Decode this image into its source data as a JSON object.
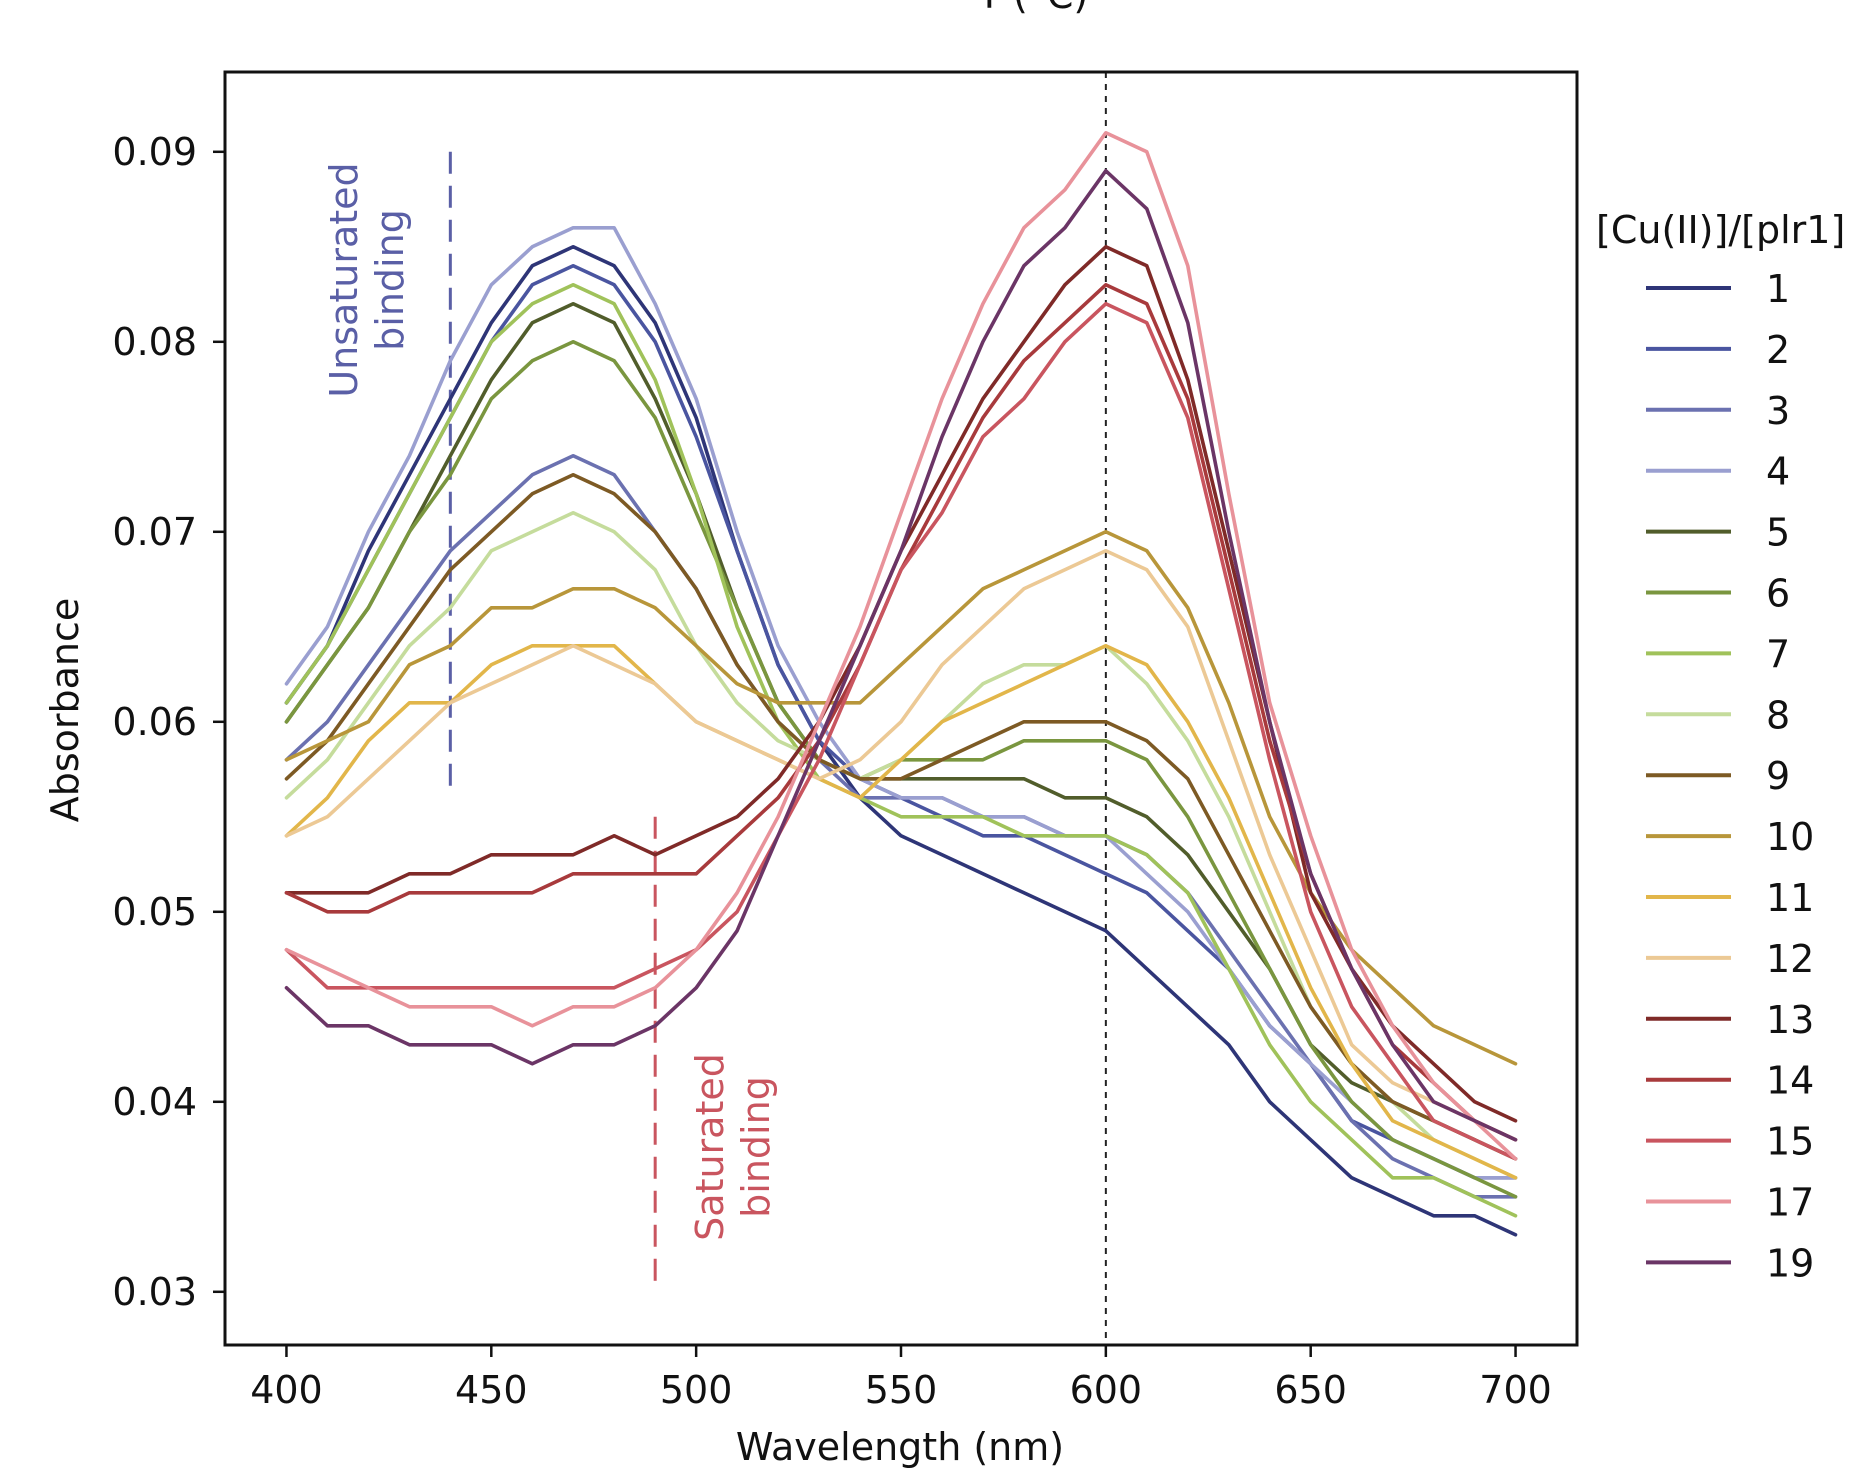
{
  "chart_data": {
    "type": "line",
    "title": "T (°C)",
    "xlabel": "Wavelength (nm)",
    "ylabel": "Absorbance",
    "xlim": [
      385,
      715
    ],
    "ylim": [
      0.0272,
      0.0942
    ],
    "xticks": [
      400,
      450,
      500,
      550,
      600,
      650,
      700
    ],
    "xtick_labels": [
      "400",
      "450",
      "500",
      "550",
      "600",
      "650",
      "700"
    ],
    "yticks": [
      0.03,
      0.04,
      0.05,
      0.06,
      0.07,
      0.08,
      0.09
    ],
    "ytick_labels": [
      "0.03",
      "0.04",
      "0.05",
      "0.06",
      "0.07",
      "0.08",
      "0.09"
    ],
    "grid": false,
    "x": [
      400,
      410,
      420,
      430,
      440,
      450,
      460,
      470,
      480,
      490,
      500,
      510,
      520,
      530,
      540,
      550,
      560,
      570,
      580,
      590,
      600,
      610,
      620,
      630,
      640,
      650,
      660,
      670,
      680,
      690,
      700
    ],
    "legend": {
      "title": "[Cu(II)]/[plr1]",
      "placement": "outside-right"
    },
    "series": [
      {
        "name": "1",
        "color": "#2e3577",
        "values": [
          0.061,
          0.064,
          0.069,
          0.073,
          0.077,
          0.081,
          0.084,
          0.085,
          0.084,
          0.081,
          0.076,
          0.069,
          0.063,
          0.059,
          0.056,
          0.054,
          0.053,
          0.052,
          0.051,
          0.05,
          0.049,
          0.047,
          0.045,
          0.043,
          0.04,
          0.038,
          0.036,
          0.035,
          0.034,
          0.034,
          0.033
        ]
      },
      {
        "name": "2",
        "color": "#4a55a0",
        "values": [
          0.061,
          0.064,
          0.068,
          0.072,
          0.076,
          0.08,
          0.083,
          0.084,
          0.083,
          0.08,
          0.075,
          0.069,
          0.063,
          0.059,
          0.057,
          0.056,
          0.055,
          0.054,
          0.054,
          0.053,
          0.052,
          0.051,
          0.049,
          0.047,
          0.044,
          0.042,
          0.039,
          0.038,
          0.037,
          0.036,
          0.036
        ]
      },
      {
        "name": "3",
        "color": "#6b71b0",
        "values": [
          0.058,
          0.06,
          0.063,
          0.066,
          0.069,
          0.071,
          0.073,
          0.074,
          0.073,
          0.07,
          0.067,
          0.063,
          0.06,
          0.058,
          0.056,
          0.056,
          0.056,
          0.055,
          0.055,
          0.054,
          0.054,
          0.053,
          0.051,
          0.048,
          0.045,
          0.042,
          0.039,
          0.037,
          0.036,
          0.035,
          0.035
        ]
      },
      {
        "name": "4",
        "color": "#9a9fd0",
        "values": [
          0.062,
          0.065,
          0.07,
          0.074,
          0.079,
          0.083,
          0.085,
          0.086,
          0.086,
          0.082,
          0.077,
          0.07,
          0.064,
          0.06,
          0.057,
          0.056,
          0.056,
          0.055,
          0.055,
          0.054,
          0.054,
          0.052,
          0.05,
          0.047,
          0.044,
          0.042,
          0.04,
          0.038,
          0.037,
          0.036,
          0.036
        ]
      },
      {
        "name": "5",
        "color": "#515d2b",
        "values": [
          0.06,
          0.063,
          0.066,
          0.07,
          0.074,
          0.078,
          0.081,
          0.082,
          0.081,
          0.077,
          0.072,
          0.066,
          0.061,
          0.058,
          0.057,
          0.057,
          0.057,
          0.057,
          0.057,
          0.056,
          0.056,
          0.055,
          0.053,
          0.05,
          0.047,
          0.043,
          0.041,
          0.04,
          0.039,
          0.038,
          0.037
        ]
      },
      {
        "name": "6",
        "color": "#7a963f",
        "values": [
          0.06,
          0.063,
          0.066,
          0.07,
          0.073,
          0.077,
          0.079,
          0.08,
          0.079,
          0.076,
          0.071,
          0.066,
          0.061,
          0.058,
          0.057,
          0.058,
          0.058,
          0.058,
          0.059,
          0.059,
          0.059,
          0.058,
          0.055,
          0.051,
          0.047,
          0.043,
          0.04,
          0.038,
          0.037,
          0.036,
          0.035
        ]
      },
      {
        "name": "7",
        "color": "#a0c25a",
        "values": [
          0.061,
          0.064,
          0.068,
          0.072,
          0.076,
          0.08,
          0.082,
          0.083,
          0.082,
          0.078,
          0.072,
          0.065,
          0.06,
          0.057,
          0.056,
          0.055,
          0.055,
          0.055,
          0.054,
          0.054,
          0.054,
          0.053,
          0.051,
          0.047,
          0.043,
          0.04,
          0.038,
          0.036,
          0.036,
          0.035,
          0.034
        ]
      },
      {
        "name": "8",
        "color": "#c5dc9c",
        "values": [
          0.056,
          0.058,
          0.061,
          0.064,
          0.066,
          0.069,
          0.07,
          0.071,
          0.07,
          0.068,
          0.064,
          0.061,
          0.059,
          0.058,
          0.057,
          0.058,
          0.06,
          0.062,
          0.063,
          0.063,
          0.064,
          0.062,
          0.059,
          0.055,
          0.05,
          0.045,
          0.042,
          0.04,
          0.038,
          0.037,
          0.036
        ]
      },
      {
        "name": "9",
        "color": "#7d5a24",
        "values": [
          0.057,
          0.059,
          0.062,
          0.065,
          0.068,
          0.07,
          0.072,
          0.073,
          0.072,
          0.07,
          0.067,
          0.063,
          0.06,
          0.058,
          0.057,
          0.057,
          0.058,
          0.059,
          0.06,
          0.06,
          0.06,
          0.059,
          0.057,
          0.053,
          0.049,
          0.045,
          0.042,
          0.04,
          0.039,
          0.038,
          0.037
        ]
      },
      {
        "name": "10",
        "color": "#b8963a",
        "values": [
          0.058,
          0.059,
          0.06,
          0.063,
          0.064,
          0.066,
          0.066,
          0.067,
          0.067,
          0.066,
          0.064,
          0.062,
          0.061,
          0.061,
          0.061,
          0.063,
          0.065,
          0.067,
          0.068,
          0.069,
          0.07,
          0.069,
          0.066,
          0.061,
          0.055,
          0.051,
          0.048,
          0.046,
          0.044,
          0.043,
          0.042
        ]
      },
      {
        "name": "11",
        "color": "#e2b64a",
        "values": [
          0.054,
          0.056,
          0.059,
          0.061,
          0.061,
          0.063,
          0.064,
          0.064,
          0.064,
          0.062,
          0.06,
          0.059,
          0.058,
          0.057,
          0.056,
          0.058,
          0.06,
          0.061,
          0.062,
          0.063,
          0.064,
          0.063,
          0.06,
          0.056,
          0.051,
          0.046,
          0.042,
          0.039,
          0.038,
          0.037,
          0.036
        ]
      },
      {
        "name": "12",
        "color": "#ecc995",
        "values": [
          0.054,
          0.055,
          0.057,
          0.059,
          0.061,
          0.062,
          0.063,
          0.064,
          0.063,
          0.062,
          0.06,
          0.059,
          0.058,
          0.057,
          0.058,
          0.06,
          0.063,
          0.065,
          0.067,
          0.068,
          0.069,
          0.068,
          0.065,
          0.059,
          0.053,
          0.048,
          0.043,
          0.041,
          0.04,
          0.039,
          0.038
        ]
      },
      {
        "name": "13",
        "color": "#7f2a28",
        "values": [
          0.051,
          0.051,
          0.051,
          0.052,
          0.052,
          0.053,
          0.053,
          0.053,
          0.054,
          0.053,
          0.054,
          0.055,
          0.057,
          0.06,
          0.064,
          0.069,
          0.073,
          0.077,
          0.08,
          0.083,
          0.085,
          0.084,
          0.078,
          0.069,
          0.06,
          0.051,
          0.047,
          0.044,
          0.042,
          0.04,
          0.039
        ]
      },
      {
        "name": "14",
        "color": "#a83a3c",
        "values": [
          0.051,
          0.05,
          0.05,
          0.051,
          0.051,
          0.051,
          0.051,
          0.052,
          0.052,
          0.052,
          0.052,
          0.054,
          0.056,
          0.059,
          0.063,
          0.068,
          0.072,
          0.076,
          0.079,
          0.081,
          0.083,
          0.082,
          0.077,
          0.068,
          0.059,
          0.052,
          0.047,
          0.043,
          0.041,
          0.039,
          0.038
        ]
      },
      {
        "name": "15",
        "color": "#c9555f",
        "values": [
          0.048,
          0.046,
          0.046,
          0.046,
          0.046,
          0.046,
          0.046,
          0.046,
          0.046,
          0.047,
          0.048,
          0.05,
          0.054,
          0.058,
          0.063,
          0.068,
          0.071,
          0.075,
          0.077,
          0.08,
          0.082,
          0.081,
          0.076,
          0.067,
          0.058,
          0.05,
          0.045,
          0.042,
          0.039,
          0.038,
          0.037
        ]
      },
      {
        "name": "17",
        "color": "#e8929a",
        "values": [
          0.048,
          0.047,
          0.046,
          0.045,
          0.045,
          0.045,
          0.044,
          0.045,
          0.045,
          0.046,
          0.048,
          0.051,
          0.055,
          0.06,
          0.065,
          0.071,
          0.077,
          0.082,
          0.086,
          0.088,
          0.091,
          0.09,
          0.084,
          0.072,
          0.061,
          0.054,
          0.048,
          0.044,
          0.041,
          0.039,
          0.037
        ]
      },
      {
        "name": "19",
        "color": "#6b3566",
        "values": [
          0.046,
          0.044,
          0.044,
          0.043,
          0.043,
          0.043,
          0.042,
          0.043,
          0.043,
          0.044,
          0.046,
          0.049,
          0.054,
          0.059,
          0.064,
          0.069,
          0.075,
          0.08,
          0.084,
          0.086,
          0.089,
          0.087,
          0.081,
          0.07,
          0.06,
          0.052,
          0.047,
          0.043,
          0.04,
          0.039,
          0.038
        ]
      }
    ],
    "reference_lines": [
      {
        "name": "unsaturated",
        "x": 440,
        "y_range": [
          0.056,
          0.09
        ],
        "color": "#5a5fa6",
        "style": "dashed"
      },
      {
        "name": "saturated",
        "x": 490,
        "y_range": [
          0.03,
          0.055
        ],
        "color": "#c9555f",
        "style": "dashed"
      },
      {
        "name": "peak",
        "x": 600,
        "y_range": [
          0.0272,
          0.0942
        ],
        "color": "#222222",
        "style": "dotted"
      }
    ],
    "annotations": [
      {
        "name": "unsaturated",
        "lines": [
          "Unsaturated",
          "binding"
        ],
        "color": "#5a5fa6"
      },
      {
        "name": "saturated",
        "lines": [
          "Saturated",
          "binding"
        ],
        "color": "#c9555f"
      }
    ]
  }
}
